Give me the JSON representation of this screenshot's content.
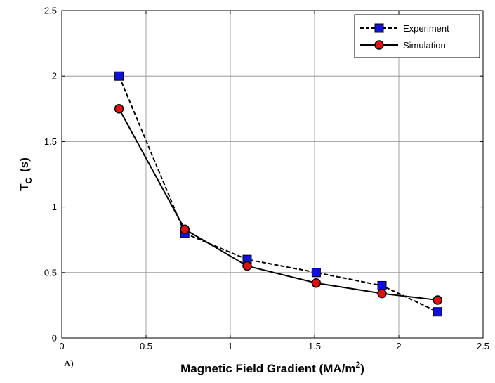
{
  "chart_data": {
    "type": "line",
    "xlabel": "Magnetic Field Gradient (MA/m",
    "xlabel_sup": "2",
    "xlabel_end": ")",
    "ylabel_main": "T",
    "ylabel_sub": "C",
    "ylabel_unit": "(s)",
    "panel_label": "A)",
    "xlim": [
      0,
      2.5
    ],
    "ylim": [
      0,
      2.5
    ],
    "xticks": [
      0,
      0.5,
      1,
      1.5,
      2,
      2.5
    ],
    "xtick_labels": [
      "0",
      "0.5",
      "1",
      "1.5",
      "2",
      "2.5"
    ],
    "yticks": [
      0,
      0.5,
      1,
      1.5,
      2,
      2.5
    ],
    "ytick_labels": [
      "0",
      "0.5",
      "1",
      "1.5",
      "2",
      "2.5"
    ],
    "grid": true,
    "legend_position": "top-right",
    "series": [
      {
        "name": "Experiment",
        "line_style": "dashed",
        "marker": "square",
        "marker_color": "#1010d8",
        "line_color": "#000000",
        "x": [
          0.34,
          0.73,
          1.1,
          1.51,
          1.9,
          2.23
        ],
        "y": [
          2.0,
          0.8,
          0.6,
          0.5,
          0.4,
          0.2
        ]
      },
      {
        "name": "Simulation",
        "line_style": "solid",
        "marker": "circle",
        "marker_color": "#e01010",
        "line_color": "#000000",
        "x": [
          0.34,
          0.73,
          1.1,
          1.51,
          1.9,
          2.23
        ],
        "y": [
          1.75,
          0.83,
          0.55,
          0.42,
          0.34,
          0.29
        ]
      }
    ]
  }
}
